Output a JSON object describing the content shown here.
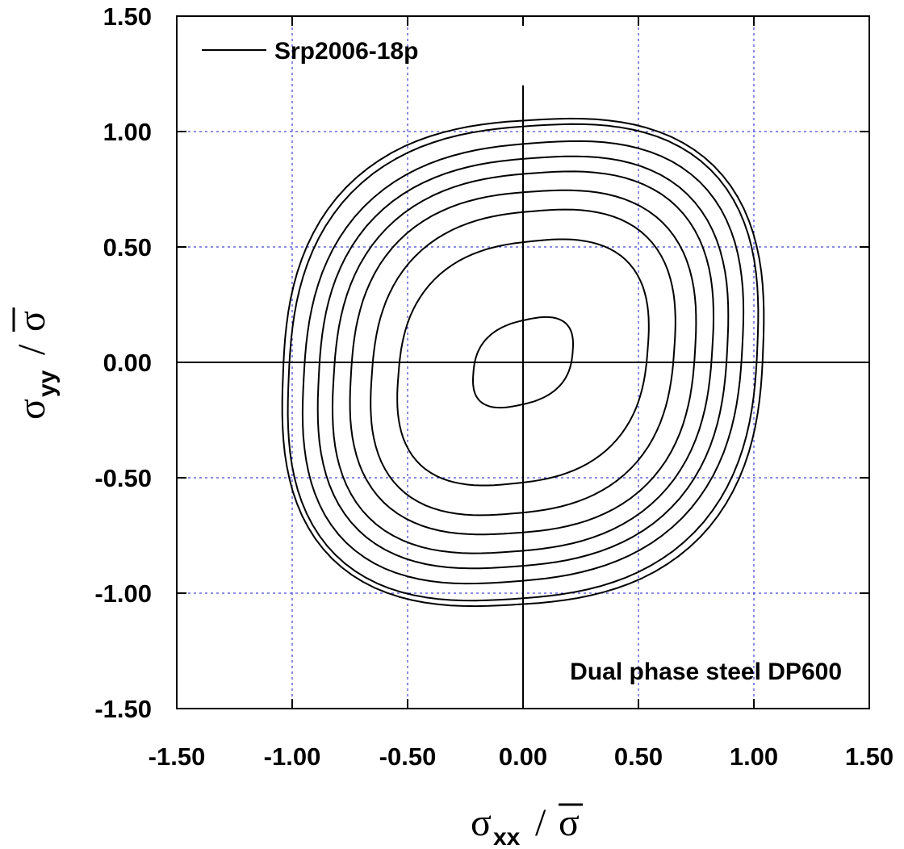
{
  "chart_data": {
    "type": "line",
    "legend": {
      "label": "Srp2006-18p",
      "position": "top-left"
    },
    "annotation": "Dual phase steel DP600",
    "x_axis": {
      "symbol": "σ",
      "subscript": "xx",
      "separator": "/",
      "bar_symbol": "σ",
      "range": [
        -1.5,
        1.5
      ],
      "ticks": [
        "-1.50",
        "-1.00",
        "-0.50",
        "0.00",
        "0.50",
        "1.00",
        "1.50"
      ]
    },
    "y_axis": {
      "symbol": "σ",
      "subscript": "yy",
      "separator": "/",
      "bar_symbol": "σ",
      "range": [
        -1.5,
        1.5
      ],
      "ticks": [
        "-1.50",
        "-1.00",
        "-0.50",
        "0.00",
        "0.50",
        "1.00",
        "1.50"
      ]
    },
    "grid": true,
    "zero_lines": true,
    "contours": [
      {
        "level": 1,
        "x_max": 1.08,
        "y_max": 1.11,
        "x_intercept": 1.0,
        "y_intercept": 0.99
      },
      {
        "level": 2,
        "x_max": 1.06,
        "y_max": 1.09,
        "x_intercept": 0.97,
        "y_intercept": 0.96
      },
      {
        "level": 3,
        "x_max": 1.0,
        "y_max": 1.02,
        "x_intercept": 0.9,
        "y_intercept": 0.88
      },
      {
        "level": 4,
        "x_max": 0.93,
        "y_max": 0.95,
        "x_intercept": 0.84,
        "y_intercept": 0.82
      },
      {
        "level": 5,
        "x_max": 0.87,
        "y_max": 0.88,
        "x_intercept": 0.77,
        "y_intercept": 0.76
      },
      {
        "level": 6,
        "x_max": 0.79,
        "y_max": 0.79,
        "x_intercept": 0.7,
        "y_intercept": 0.69
      },
      {
        "level": 7,
        "x_max": 0.7,
        "y_max": 0.71,
        "x_intercept": 0.61,
        "y_intercept": 0.6
      },
      {
        "level": 8,
        "x_max": 0.58,
        "y_max": 0.58,
        "x_intercept": 0.5,
        "y_intercept": 0.47
      },
      {
        "level": 9,
        "x_max": 0.23,
        "y_max": 0.23,
        "x_intercept": 0.2,
        "y_intercept": 0.14
      }
    ]
  }
}
